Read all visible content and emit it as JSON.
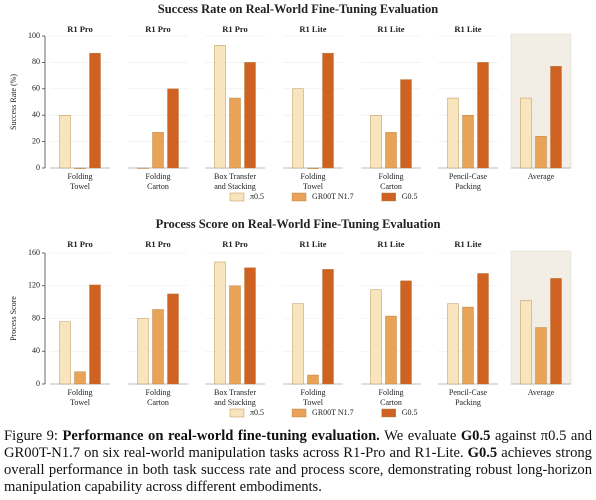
{
  "chart_data": [
    {
      "type": "bar",
      "title": "Success Rate on Real-World Fine-Tuning Evaluation",
      "ylabel": "Success Rate (%)",
      "panel_headers": [
        "R1 Pro",
        "R1 Pro",
        "R1 Pro",
        "R1 Lite",
        "R1 Lite",
        "R1 Lite",
        null
      ],
      "categories": [
        [
          "Folding",
          "Towel"
        ],
        [
          "Folding",
          "Carton"
        ],
        [
          "Box Transfer",
          "and Stacking"
        ],
        [
          "Folding",
          "Towel"
        ],
        [
          "Folding",
          "Carton"
        ],
        [
          "Pencil-Case",
          "Packing"
        ],
        [
          "Average"
        ]
      ],
      "series": [
        {
          "name": "π0.5",
          "color": "#f8e4bd",
          "values": [
            40,
            0,
            93,
            60,
            40,
            53,
            53
          ]
        },
        {
          "name": "GR00T N1.7",
          "color": "#e9a357",
          "values": [
            0,
            27,
            53,
            0,
            27,
            40,
            24
          ]
        },
        {
          "name": "G0.5",
          "color": "#cf6220",
          "values": [
            87,
            60,
            80,
            87,
            67,
            80,
            77
          ]
        }
      ],
      "ylim": [
        0,
        100
      ],
      "yticks": [
        0,
        20,
        40,
        60,
        80,
        100
      ],
      "grid": true
    },
    {
      "type": "bar",
      "title": "Process Score on Real-World Fine-Tuning Evaluation",
      "ylabel": "Process Score",
      "panel_headers": [
        "R1 Pro",
        "R1 Pro",
        "R1 Pro",
        "R1 Lite",
        "R1 Lite",
        "R1 Lite",
        null
      ],
      "categories": [
        [
          "Folding",
          "Towel"
        ],
        [
          "Folding",
          "Carton"
        ],
        [
          "Box Transfer",
          "and Stacking"
        ],
        [
          "Folding",
          "Towel"
        ],
        [
          "Folding",
          "Carton"
        ],
        [
          "Pencil-Case",
          "Packing"
        ],
        [
          "Average"
        ]
      ],
      "series": [
        {
          "name": "π0.5",
          "color": "#f8e4bd",
          "values": [
            76,
            80,
            149,
            98,
            115,
            98,
            102
          ]
        },
        {
          "name": "GR00T N1.7",
          "color": "#e9a357",
          "values": [
            15,
            91,
            120,
            11,
            83,
            94,
            69
          ]
        },
        {
          "name": "G0.5",
          "color": "#cf6220",
          "values": [
            121,
            110,
            142,
            140,
            126,
            135,
            129
          ]
        }
      ],
      "ylim": [
        0,
        160
      ],
      "yticks": [
        0,
        40,
        80,
        120,
        160
      ],
      "grid": true
    }
  ],
  "caption": [
    {
      "text": "Figure 9: ",
      "bold": false
    },
    {
      "text": "Performance on real-world fine-tuning evaluation.",
      "bold": true
    },
    {
      "text": " We evaluate ",
      "bold": false
    },
    {
      "text": "G0.5",
      "bold": true
    },
    {
      "text": " against π0.5 and GR00T-N1.7 on six real-world manipulation tasks across R1-Pro and R1-Lite. ",
      "bold": false
    },
    {
      "text": "G0.5",
      "bold": true
    },
    {
      "text": " achieves strong overall performance in both task success rate and process score, demonstrating robust long-horizon manipulation capability across different embodiments.",
      "bold": false
    }
  ]
}
